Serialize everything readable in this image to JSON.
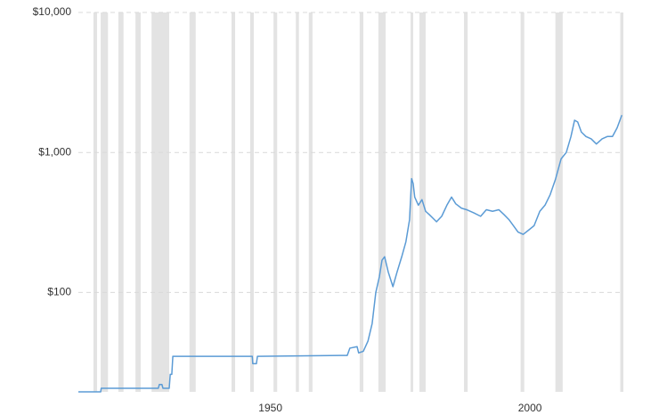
{
  "chart_data": {
    "type": "line",
    "log_y": true,
    "grid": true,
    "color": "#5b9bd5",
    "shade_color": "#e3e3e3",
    "x": [
      1913.0,
      1917.3,
      1917.4,
      1928.4,
      1928.6,
      1929.1,
      1929.3,
      1930.5,
      1930.7,
      1931.0,
      1931.2,
      1946.5,
      1946.6,
      1947.3,
      1947.5,
      1964.8,
      1965.3,
      1966.7,
      1967.0,
      1967.9,
      1968.8,
      1969.6,
      1970.3,
      1971.0,
      1971.5,
      1972.0,
      1972.7,
      1973.6,
      1974.4,
      1975.3,
      1976.1,
      1976.8,
      1977.2,
      1977.5,
      1977.8,
      1978.5,
      1979.2,
      1979.9,
      1980.6,
      1982.0,
      1983.0,
      1984.0,
      1984.9,
      1985.7,
      1986.8,
      1987.8,
      1989.2,
      1990.5,
      1991.6,
      1992.8,
      1994.0,
      1995.0,
      1996.0,
      1997.1,
      1997.7,
      1998.7,
      1999.8,
      2000.8,
      2001.9,
      2002.9,
      2003.9,
      2004.9,
      2006.0,
      2007.0,
      2007.9,
      2008.6,
      2009.2,
      2009.9,
      2010.8,
      2011.8,
      2012.8,
      2013.9,
      2014.9,
      2015.9,
      2016.8,
      2017.7
    ],
    "values": [
      19.5,
      19.5,
      20.67,
      20.67,
      22,
      22,
      20.67,
      20.67,
      26,
      26,
      35,
      35,
      31,
      31,
      35,
      35.5,
      40,
      41,
      37,
      38,
      45,
      60,
      100,
      130,
      170,
      180,
      140,
      110,
      140,
      180,
      230,
      330,
      650,
      600,
      480,
      420,
      460,
      380,
      360,
      320,
      350,
      420,
      480,
      430,
      400,
      390,
      370,
      350,
      390,
      380,
      390,
      360,
      330,
      290,
      270,
      260,
      280,
      300,
      380,
      420,
      500,
      640,
      900,
      1000,
      1300,
      1700,
      1650,
      1400,
      1300,
      1250,
      1150,
      1250,
      1300,
      1300,
      1500,
      1850
    ],
    "shaded_periods": [
      [
        1915.9,
        1916.6
      ],
      [
        1917.3,
        1918.7
      ],
      [
        1920.7,
        1921.7
      ],
      [
        1924.0,
        1925.0
      ],
      [
        1927.1,
        1930.5
      ],
      [
        1934.4,
        1935.6
      ],
      [
        1942.5,
        1943.2
      ],
      [
        1946.1,
        1946.8
      ],
      [
        1950.6,
        1951.3
      ],
      [
        1954.9,
        1955.5
      ],
      [
        1957.4,
        1958.1
      ],
      [
        1967.2,
        1967.9
      ],
      [
        1970.8,
        1972.2
      ],
      [
        1977.0,
        1977.5
      ],
      [
        1978.7,
        1979.9
      ],
      [
        1987.3,
        1988.0
      ],
      [
        1998.2,
        1998.9
      ],
      [
        2004.9,
        2006.3
      ],
      [
        2017.4,
        2018.0
      ]
    ],
    "xlim": [
      1913,
      2018
    ],
    "xticks": [
      1950,
      2000
    ],
    "ylim": [
      19.5,
      10000
    ],
    "yticks": [
      {
        "value": 100,
        "label": "$100"
      },
      {
        "value": 1000,
        "label": "$1,000"
      },
      {
        "value": 10000,
        "label": "$10,000"
      }
    ]
  }
}
